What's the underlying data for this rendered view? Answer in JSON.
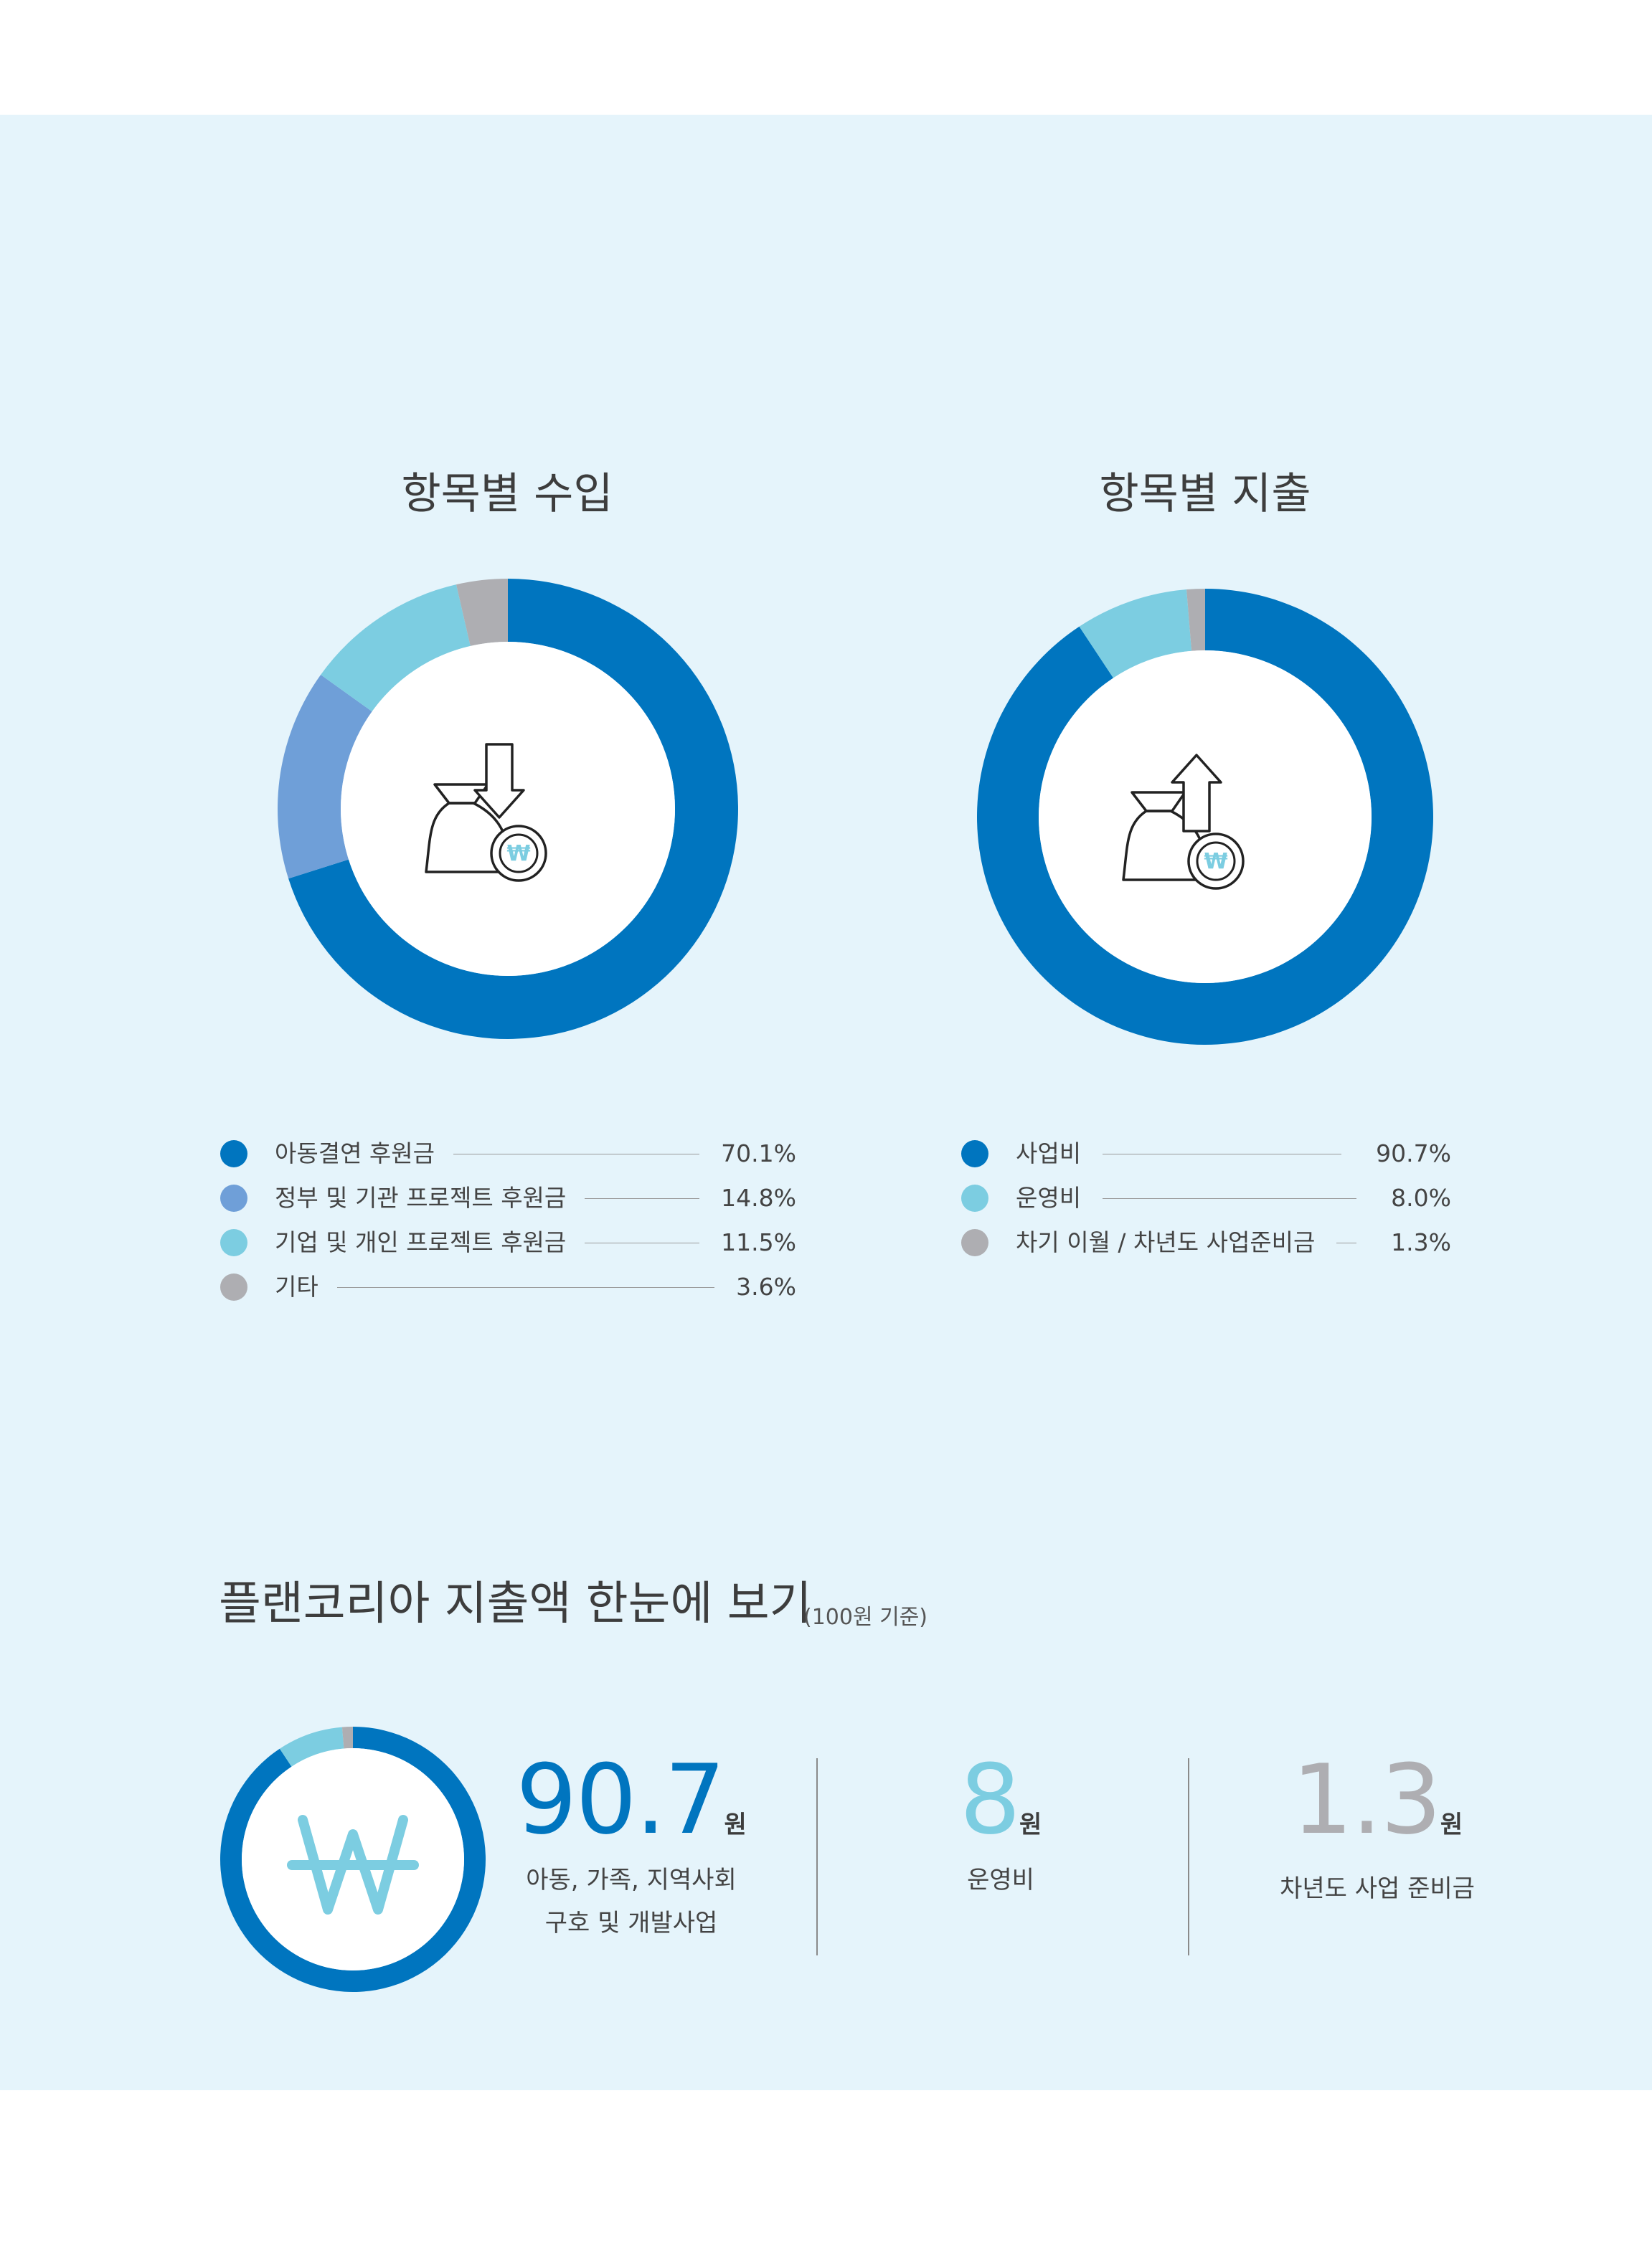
{
  "colors": {
    "panel_bg": "#e5f4fb",
    "dark_blue": "#0075bf",
    "mid_blue": "#6f9fd8",
    "light_blue": "#7ccde1",
    "gray": "#aeaeb2"
  },
  "chart_data": [
    {
      "type": "pie",
      "title": "항목별 수입",
      "center_icon": "money-bag-down-arrow-icon",
      "series": [
        {
          "name": "아동결연 후원금",
          "value": 70.1,
          "label": "70.1%",
          "color": "#0075bf"
        },
        {
          "name": "정부 및 기관 프로젝트 후원금",
          "value": 14.8,
          "label": "14.8%",
          "color": "#6f9fd8"
        },
        {
          "name": "기업 및 개인 프로젝트 후원금",
          "value": 11.5,
          "label": "11.5%",
          "color": "#7ccde1"
        },
        {
          "name": "기타",
          "value": 3.6,
          "label": "3.6%",
          "color": "#aeaeb2"
        }
      ]
    },
    {
      "type": "pie",
      "title": "항목별 지출",
      "center_icon": "money-bag-up-arrow-icon",
      "series": [
        {
          "name": "사업비",
          "value": 90.7,
          "label": "90.7%",
          "color": "#0075bf"
        },
        {
          "name": "운영비",
          "value": 8.0,
          "label": "8.0%",
          "color": "#7ccde1"
        },
        {
          "name": "차기 이월 / 차년도 사업준비금",
          "value": 1.3,
          "label": "1.3%",
          "color": "#aeaeb2"
        }
      ]
    },
    {
      "type": "pie",
      "center_icon": "won-icon",
      "series": [
        {
          "value": 90.7,
          "color": "#0075bf"
        },
        {
          "value": 8.0,
          "color": "#7ccde1"
        },
        {
          "value": 1.3,
          "color": "#aeaeb2"
        }
      ]
    }
  ],
  "summary": {
    "title": "플랜코리아 지출액 한눈에 보기",
    "note": "(100원 기준)",
    "unit": "원",
    "stats": [
      {
        "number": "90.7",
        "desc_line1": "아동, 가족, 지역사회",
        "desc_line2": "구호 및 개발사업",
        "color": "#0075bf"
      },
      {
        "number": "8",
        "desc_line1": "운영비",
        "desc_line2": "",
        "color": "#7ccde1"
      },
      {
        "number": "1.3",
        "desc_line1": "차년도 사업 준비금",
        "desc_line2": "",
        "color": "#aeaeb2"
      }
    ]
  }
}
